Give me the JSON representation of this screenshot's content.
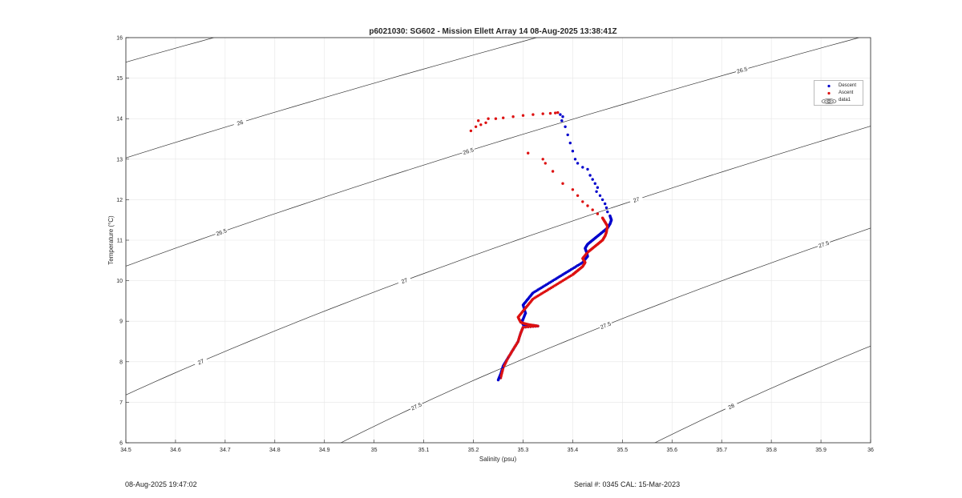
{
  "chart_data": {
    "type": "scatter",
    "title": "p6021030: SG602 - Mission Ellett Array 14 08-Aug-2025 13:38:41Z",
    "xlabel": "Salinity (psu)",
    "ylabel": "Temperature (°C)",
    "xlim": [
      34.5,
      36
    ],
    "ylim": [
      6,
      16
    ],
    "xticks": [
      "34.5",
      "34.6",
      "34.7",
      "34.8",
      "34.9",
      "35",
      "35.1",
      "35.2",
      "35.3",
      "35.4",
      "35.5",
      "35.6",
      "35.7",
      "35.8",
      "35.9",
      "36"
    ],
    "yticks": [
      "6",
      "7",
      "8",
      "9",
      "10",
      "11",
      "12",
      "13",
      "14",
      "15",
      "16"
    ],
    "grid": true,
    "legend_position": "top-right",
    "legend": [
      "Descent",
      "Ascent",
      "data1"
    ],
    "colors": {
      "descent": "#0000cc",
      "ascent": "#dd1111",
      "contour": "#333333",
      "grid": "#e6e6e6"
    },
    "series": [
      {
        "name": "Descent",
        "x": [
          35.375,
          35.38,
          35.378,
          35.385,
          35.39,
          35.395,
          35.4,
          35.405,
          35.41,
          35.42,
          35.43,
          35.435,
          35.44,
          35.445,
          35.45,
          35.448,
          35.455,
          35.46,
          35.465,
          35.468,
          35.47,
          35.475,
          35.478,
          35.475,
          35.47,
          35.46,
          35.45,
          35.44,
          35.43,
          35.425,
          35.428,
          35.43,
          35.42,
          35.4,
          35.38,
          35.36,
          35.34,
          35.32,
          35.31,
          35.3,
          35.305,
          35.3,
          35.298,
          35.3,
          35.31,
          35.32,
          35.33,
          35.3,
          35.295,
          35.29,
          35.28,
          35.27,
          35.26,
          35.255,
          35.25
        ],
        "y": [
          14.1,
          14.05,
          13.95,
          13.8,
          13.6,
          13.4,
          13.2,
          13.0,
          12.9,
          12.8,
          12.75,
          12.6,
          12.5,
          12.4,
          12.3,
          12.2,
          12.1,
          12.0,
          11.9,
          11.8,
          11.7,
          11.6,
          11.5,
          11.4,
          11.3,
          11.2,
          11.1,
          11.0,
          10.9,
          10.8,
          10.7,
          10.6,
          10.45,
          10.3,
          10.15,
          10.0,
          9.85,
          9.7,
          9.55,
          9.4,
          9.2,
          9.05,
          9.0,
          8.92,
          8.9,
          8.9,
          8.88,
          8.85,
          8.7,
          8.5,
          8.3,
          8.1,
          7.9,
          7.7,
          7.55
        ]
      },
      {
        "name": "Ascent",
        "x": [
          35.195,
          35.205,
          35.215,
          35.225,
          35.23,
          35.21,
          35.245,
          35.26,
          35.28,
          35.3,
          35.32,
          35.34,
          35.355,
          35.365,
          35.37,
          35.31,
          35.34,
          35.345,
          35.36,
          35.38,
          35.4,
          35.41,
          35.42,
          35.43,
          35.44,
          35.45,
          35.46,
          35.465,
          35.47,
          35.468,
          35.465,
          35.46,
          35.45,
          35.44,
          35.43,
          35.42,
          35.425,
          35.42,
          35.41,
          35.4,
          35.38,
          35.36,
          35.34,
          35.32,
          35.31,
          35.3,
          35.29,
          35.295,
          35.3,
          35.31,
          35.32,
          35.33,
          35.3,
          35.295,
          35.29,
          35.28,
          35.27,
          35.26,
          35.255
        ],
        "y": [
          13.7,
          13.8,
          13.85,
          13.9,
          14.0,
          13.95,
          14.0,
          14.02,
          14.05,
          14.08,
          14.1,
          14.12,
          14.13,
          14.14,
          14.15,
          13.15,
          13.0,
          12.9,
          12.7,
          12.4,
          12.25,
          12.1,
          11.95,
          11.85,
          11.75,
          11.65,
          11.55,
          11.45,
          11.35,
          11.2,
          11.1,
          11.0,
          10.9,
          10.8,
          10.7,
          10.55,
          10.45,
          10.35,
          10.25,
          10.15,
          10.0,
          9.85,
          9.7,
          9.55,
          9.4,
          9.25,
          9.1,
          8.98,
          8.95,
          8.92,
          8.9,
          8.88,
          8.85,
          8.7,
          8.5,
          8.3,
          8.1,
          7.85,
          7.6
        ]
      },
      {
        "name": "data1",
        "type": "contour",
        "levels": [
          25.5,
          26,
          26.5,
          27,
          27.5,
          28
        ]
      }
    ]
  },
  "footer": {
    "date": "08-Aug-2025 19:47:02",
    "serial": "Serial #: 0345  CAL: 15-Mar-2023"
  }
}
